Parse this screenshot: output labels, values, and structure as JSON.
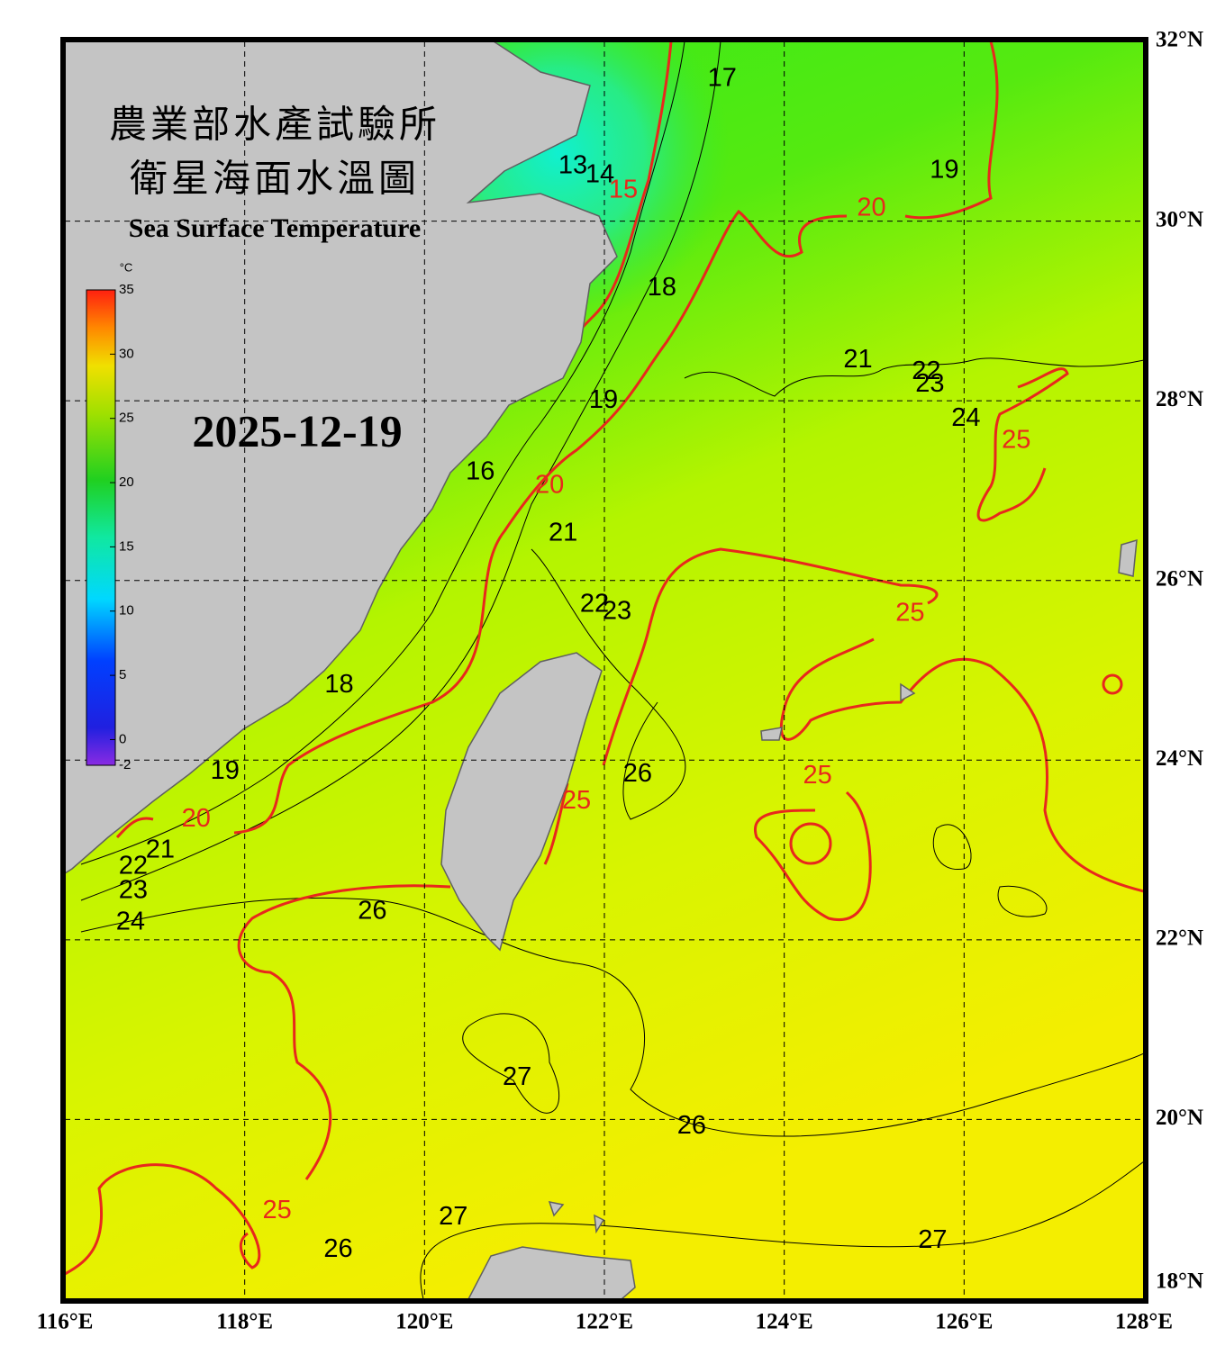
{
  "header": {
    "title_zh_1": "農業部水產試驗所",
    "title_zh_2": "衛星海面水溫圖",
    "title_en": "Sea Surface Temperature"
  },
  "date": "2025-12-19",
  "colorbar": {
    "unit": "°C",
    "lim": [
      -2,
      35
    ],
    "ticks": [
      35,
      30,
      25,
      20,
      15,
      10,
      5,
      0,
      -2
    ]
  },
  "map": {
    "xlim": [
      116,
      128
    ],
    "ylim": [
      18,
      32
    ],
    "grid": true,
    "xticks": [
      {
        "value": 116,
        "label": "116°E"
      },
      {
        "value": 118,
        "label": "118°E"
      },
      {
        "value": 120,
        "label": "120°E"
      },
      {
        "value": 122,
        "label": "122°E"
      },
      {
        "value": 124,
        "label": "124°E"
      },
      {
        "value": 126,
        "label": "126°E"
      },
      {
        "value": 128,
        "label": "128°E"
      }
    ],
    "yticks": [
      {
        "value": 32,
        "label": "32°N"
      },
      {
        "value": 30,
        "label": "30°N"
      },
      {
        "value": 28,
        "label": "28°N"
      },
      {
        "value": 26,
        "label": "26°N"
      },
      {
        "value": 24,
        "label": "24°N"
      },
      {
        "value": 22,
        "label": "22°N"
      },
      {
        "value": 20,
        "label": "20°N"
      },
      {
        "value": 18,
        "label": "18°N"
      }
    ]
  },
  "contour_labels": [
    {
      "value": 17,
      "lon": 123.31,
      "lat": 31.58,
      "color": "#000000"
    },
    {
      "value": 19,
      "lon": 125.78,
      "lat": 30.56,
      "color": "#000000"
    },
    {
      "value": 20,
      "lon": 124.97,
      "lat": 30.14,
      "color": "#e8281c"
    },
    {
      "value": 13,
      "lon": 121.65,
      "lat": 30.61,
      "color": "#000000"
    },
    {
      "value": 14,
      "lon": 121.95,
      "lat": 30.51,
      "color": "#000000"
    },
    {
      "value": 15,
      "lon": 122.21,
      "lat": 30.34,
      "color": "#e8281c"
    },
    {
      "value": 18,
      "lon": 122.64,
      "lat": 29.25,
      "color": "#000000"
    },
    {
      "value": 21,
      "lon": 124.82,
      "lat": 28.45,
      "color": "#000000"
    },
    {
      "value": 22,
      "lon": 125.58,
      "lat": 28.32,
      "color": "#000000"
    },
    {
      "value": 23,
      "lon": 125.62,
      "lat": 28.18,
      "color": "#000000"
    },
    {
      "value": 24,
      "lon": 126.02,
      "lat": 27.8,
      "color": "#000000"
    },
    {
      "value": 25,
      "lon": 126.58,
      "lat": 27.55,
      "color": "#e8281c"
    },
    {
      "value": 19,
      "lon": 121.99,
      "lat": 28.0,
      "color": "#000000"
    },
    {
      "value": 16,
      "lon": 120.62,
      "lat": 27.2,
      "color": "#000000"
    },
    {
      "value": 20,
      "lon": 121.39,
      "lat": 27.05,
      "color": "#e8281c"
    },
    {
      "value": 21,
      "lon": 121.54,
      "lat": 26.52,
      "color": "#000000"
    },
    {
      "value": 22,
      "lon": 121.89,
      "lat": 25.73,
      "color": "#000000"
    },
    {
      "value": 23,
      "lon": 122.14,
      "lat": 25.65,
      "color": "#000000"
    },
    {
      "value": 25,
      "lon": 125.4,
      "lat": 25.63,
      "color": "#e8281c"
    },
    {
      "value": 18,
      "lon": 119.05,
      "lat": 24.83,
      "color": "#000000"
    },
    {
      "value": 26,
      "lon": 122.37,
      "lat": 23.84,
      "color": "#000000"
    },
    {
      "value": 25,
      "lon": 124.37,
      "lat": 23.82,
      "color": "#e8281c"
    },
    {
      "value": 25,
      "lon": 121.69,
      "lat": 23.54,
      "color": "#e8281c"
    },
    {
      "value": 19,
      "lon": 117.78,
      "lat": 23.87,
      "color": "#000000"
    },
    {
      "value": 20,
      "lon": 117.46,
      "lat": 23.34,
      "color": "#e8281c"
    },
    {
      "value": 21,
      "lon": 117.06,
      "lat": 22.99,
      "color": "#000000"
    },
    {
      "value": 22,
      "lon": 116.76,
      "lat": 22.81,
      "color": "#000000"
    },
    {
      "value": 23,
      "lon": 116.76,
      "lat": 22.54,
      "color": "#000000"
    },
    {
      "value": 24,
      "lon": 116.73,
      "lat": 22.19,
      "color": "#000000"
    },
    {
      "value": 26,
      "lon": 119.42,
      "lat": 22.31,
      "color": "#000000"
    },
    {
      "value": 27,
      "lon": 121.03,
      "lat": 20.46,
      "color": "#000000"
    },
    {
      "value": 26,
      "lon": 122.97,
      "lat": 19.92,
      "color": "#000000"
    },
    {
      "value": 25,
      "lon": 118.36,
      "lat": 18.98,
      "color": "#e8281c"
    },
    {
      "value": 27,
      "lon": 120.32,
      "lat": 18.91,
      "color": "#000000"
    },
    {
      "value": 27,
      "lon": 125.65,
      "lat": 18.65,
      "color": "#000000"
    },
    {
      "value": 26,
      "lon": 119.04,
      "lat": 18.55,
      "color": "#000000"
    }
  ]
}
